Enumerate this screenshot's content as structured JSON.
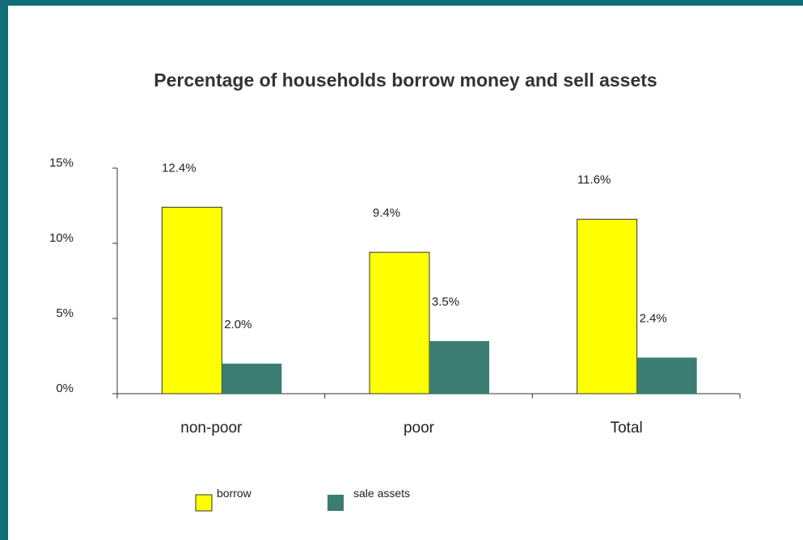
{
  "colors": {
    "frame": "#0f6e78",
    "borrow": "#ffff00",
    "sale_assets": "#3c7d72"
  },
  "chart_data": {
    "type": "bar",
    "title": "Percentage of households borrow money and sell assets",
    "xlabel": "",
    "ylabel": "",
    "categories": [
      "non-poor",
      "poor",
      "Total"
    ],
    "series": [
      {
        "name": "borrow",
        "values": [
          12.4,
          9.4,
          11.6
        ],
        "labels": [
          "12.4%",
          "9.4%",
          "11.6%"
        ]
      },
      {
        "name": "sale assets",
        "values": [
          2.0,
          3.5,
          2.4
        ],
        "labels": [
          "2.0%",
          "3.5%",
          "2.4%"
        ]
      }
    ],
    "ylim": [
      0,
      15
    ],
    "yticks": [
      0,
      5,
      10,
      15
    ],
    "ytick_labels": [
      "0%",
      "5%",
      "10%",
      "15%"
    ],
    "grid": false,
    "legend": "bottom"
  }
}
